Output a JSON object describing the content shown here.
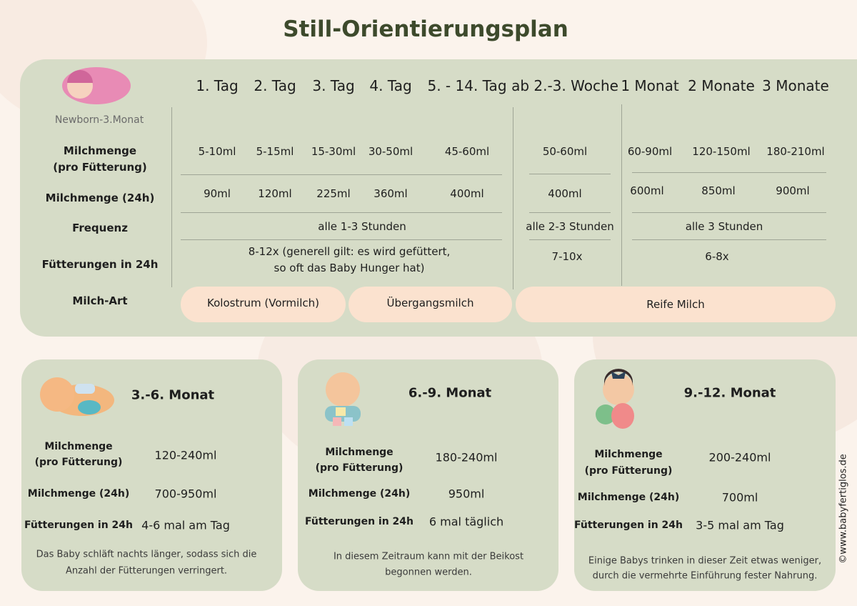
{
  "title": "Still-Orientierungsplan",
  "overview": {
    "age_label": "Newborn-3.Monat",
    "columns": [
      "1. Tag",
      "2. Tag",
      "3. Tag",
      "4. Tag",
      "5. - 14. Tag",
      "ab 2.-3. Woche",
      "1 Monat",
      "2 Monate",
      "3 Monate"
    ],
    "row_labels": [
      [
        "Milchmenge",
        "(pro Fütterung)"
      ],
      [
        "Milchmenge  (24h)"
      ],
      [
        "Frequenz"
      ],
      [
        "Fütterungen in 24h"
      ],
      [
        "Milch-Art"
      ]
    ],
    "milk_per_feeding": [
      "5-10ml",
      "5-15ml",
      "15-30ml",
      "30-50ml",
      "45-60ml",
      "50-60ml",
      "60-90ml",
      "120-150ml",
      "180-210ml"
    ],
    "milk_per_day": [
      "90ml",
      "120ml",
      "225ml",
      "360ml",
      "400ml",
      "400ml",
      "600ml",
      "850ml",
      "900ml"
    ],
    "frequency": [
      "alle 1-3 Stunden",
      "alle 2-3 Stunden",
      "alle 3 Stunden"
    ],
    "feedings": [
      [
        "8-12x (generell gilt: es wird gefüttert,",
        "so oft das Baby Hunger hat)"
      ],
      [
        "7-10x"
      ],
      [
        "6-8x"
      ]
    ],
    "milk_types": [
      "Kolostrum (Vormilch)",
      "Übergangsmilch",
      "Reife Milch"
    ]
  },
  "cards": [
    {
      "title": "3.-6. Monat",
      "rows": [
        {
          "label": [
            "Milchmenge",
            "(pro Fütterung)"
          ],
          "value": "120-240ml"
        },
        {
          "label": [
            "Milchmenge  (24h)"
          ],
          "value": "700-950ml"
        },
        {
          "label": [
            "Fütterungen in 24h"
          ],
          "value": "4-6 mal am Tag"
        }
      ],
      "note": [
        "Das Baby schläft nachts länger, sodass sich die",
        "Anzahl der Fütterungen verringert."
      ]
    },
    {
      "title": "6.-9. Monat",
      "rows": [
        {
          "label": [
            "Milchmenge",
            "(pro Fütterung)"
          ],
          "value": "180-240ml"
        },
        {
          "label": [
            "Milchmenge  (24h)"
          ],
          "value": "950ml"
        },
        {
          "label": [
            "Fütterungen in 24h"
          ],
          "value": "6 mal täglich"
        }
      ],
      "note": [
        "In diesem Zeitraum kann mit der Beikost",
        "begonnen werden."
      ]
    },
    {
      "title": "9.-12. Monat",
      "rows": [
        {
          "label": [
            "Milchmenge",
            "(pro Fütterung)"
          ],
          "value": "200-240ml"
        },
        {
          "label": [
            "Milchmenge  (24h)"
          ],
          "value": "700ml"
        },
        {
          "label": [
            "Fütterungen in 24h"
          ],
          "value": "3-5 mal am Tag"
        }
      ],
      "note": [
        "Einige Babys trinken in dieser Zeit etwas weniger,",
        "durch die vermehrte Einführung fester Nahrung."
      ]
    }
  ],
  "copyright": "©www.babyfertiglos.de"
}
